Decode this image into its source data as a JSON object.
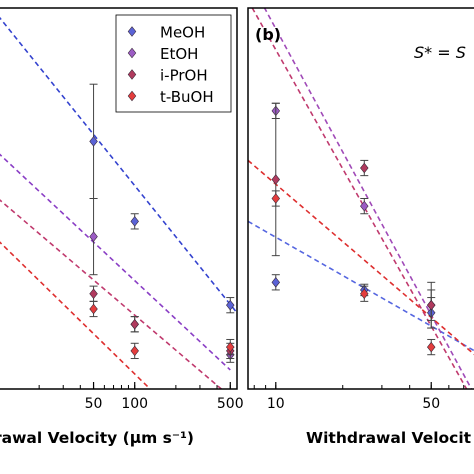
{
  "chart_data": [
    {
      "type": "scatter",
      "panel_label": "",
      "xlabel": "rawal Velocity (μm s⁻¹)",
      "xscale": "log",
      "xlim": [
        10,
        560
      ],
      "ylim": [
        0,
        1
      ],
      "xticks": [
        {
          "value": 50,
          "label": "50"
        },
        {
          "value": 100,
          "label": "100"
        },
        {
          "value": 500,
          "label": "500"
        }
      ],
      "legend": {
        "position": "top-right"
      },
      "series": [
        {
          "name": "MeOH",
          "color": "#5b63d6",
          "points": [
            {
              "x": 50,
              "y": 0.65,
              "err": 0.15
            },
            {
              "x": 100,
              "y": 0.44,
              "err": 0.02
            },
            {
              "x": 500,
              "y": 0.22,
              "err": 0.02
            }
          ],
          "fit": [
            [
              10,
              0.98
            ],
            [
              560,
              0.2
            ]
          ],
          "fit_color": "#3443cf"
        },
        {
          "name": "EtOH",
          "color": "#9c5cc4",
          "points": [
            {
              "x": 50,
              "y": 0.4,
              "err": 0.1
            },
            {
              "x": 100,
              "y": 0.17,
              "err": 0.02
            },
            {
              "x": 500,
              "y": 0.09,
              "err": 0.02
            }
          ],
          "fit": [
            [
              10,
              0.62
            ],
            [
              500,
              0.05
            ]
          ],
          "fit_color": "#8a3ec5"
        },
        {
          "name": "i-PrOH",
          "color": "#b03a5e",
          "points": [
            {
              "x": 50,
              "y": 0.25,
              "err": 0.02
            },
            {
              "x": 100,
              "y": 0.17,
              "err": 0.02
            },
            {
              "x": 500,
              "y": 0.1,
              "err": 0.02
            }
          ],
          "fit": [
            [
              10,
              0.5
            ],
            [
              500,
              -0.02
            ]
          ],
          "fit_color": "#c03a6e"
        },
        {
          "name": "t-BuOH",
          "color": "#e33d3d",
          "points": [
            {
              "x": 50,
              "y": 0.21,
              "err": 0.02
            },
            {
              "x": 100,
              "y": 0.1,
              "err": 0.02
            },
            {
              "x": 500,
              "y": 0.11,
              "err": 0.02
            }
          ],
          "fit": [
            [
              10,
              0.39
            ],
            [
              250,
              -0.1
            ]
          ],
          "fit_color": "#de2f2f"
        }
      ]
    },
    {
      "type": "scatter",
      "panel_label": "(b)",
      "annotation": "S* = S",
      "xlabel": "Withdrawal Velocit",
      "xscale": "log",
      "xlim": [
        7.5,
        90
      ],
      "ylim": [
        0,
        1
      ],
      "xticks": [
        {
          "value": 10,
          "label": "10"
        },
        {
          "value": 50,
          "label": "50"
        }
      ],
      "series": [
        {
          "name": "MeOH",
          "color": "#5b63d6",
          "points": [
            {
              "x": 10,
              "y": 0.28,
              "err": 0.02
            },
            {
              "x": 25,
              "y": 0.26,
              "err": 0.015
            },
            {
              "x": 50,
              "y": 0.2,
              "err": 0.04
            }
          ],
          "fit": [
            [
              7.5,
              0.44
            ],
            [
              90,
              0.08
            ]
          ],
          "fit_color": "#5566e0"
        },
        {
          "name": "EtOH",
          "color": "#9c5cc4",
          "points": [
            {
              "x": 10,
              "y": 0.73,
              "err": 0.02
            },
            {
              "x": 25,
              "y": 0.48,
              "err": 0.02
            },
            {
              "x": 50,
              "y": 0.22,
              "err": 0.04
            }
          ],
          "fit": [
            [
              7.5,
              1.08
            ],
            [
              90,
              -0.08
            ]
          ],
          "fit_color": "#a04ab8"
        },
        {
          "name": "i-PrOH",
          "color": "#b03a5e",
          "points": [
            {
              "x": 10,
              "y": 0.55,
              "err": 0.2
            },
            {
              "x": 25,
              "y": 0.58,
              "err": 0.02
            },
            {
              "x": 50,
              "y": 0.22,
              "err": 0.06
            }
          ],
          "fit": [
            [
              7.5,
              1.02
            ],
            [
              90,
              -0.1
            ]
          ],
          "fit_color": "#c03a6e"
        },
        {
          "name": "t-BuOH",
          "color": "#e33d3d",
          "points": [
            {
              "x": 10,
              "y": 0.5,
              "err": 0.02
            },
            {
              "x": 25,
              "y": 0.25,
              "err": 0.02
            },
            {
              "x": 50,
              "y": 0.11,
              "err": 0.02
            }
          ],
          "fit": [
            [
              7.5,
              0.6
            ],
            [
              90,
              0.06
            ]
          ],
          "fit_color": "#de2f2f"
        }
      ]
    }
  ]
}
